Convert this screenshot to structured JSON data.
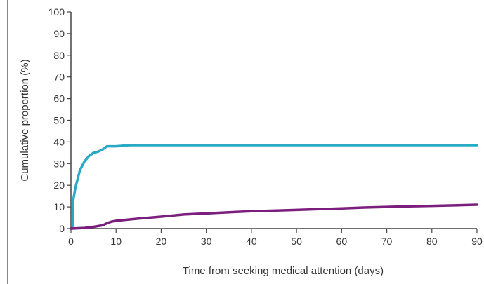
{
  "chart_data": {
    "type": "line",
    "title": "",
    "xlabel": "Time from seeking medical attention (days)",
    "ylabel": "Cumulative proportion (%)",
    "xlim": [
      0,
      90
    ],
    "ylim": [
      0,
      100
    ],
    "x_ticks": [
      0,
      10,
      20,
      30,
      40,
      50,
      60,
      70,
      80,
      90
    ],
    "y_ticks": [
      0,
      10,
      20,
      30,
      40,
      50,
      60,
      70,
      80,
      90,
      100
    ],
    "grid": false,
    "series": [
      {
        "color": "#2aa9c4",
        "x": [
          0.5,
          0.5,
          1,
          1.5,
          2,
          3,
          4,
          5,
          6,
          7,
          8,
          10,
          13,
          20,
          40,
          60,
          80,
          90
        ],
        "y": [
          0,
          13,
          19,
          23,
          27,
          31,
          33.5,
          35,
          35.5,
          36.5,
          38,
          38,
          38.5,
          38.5,
          38.5,
          38.5,
          38.5,
          38.5
        ]
      },
      {
        "color": "#7b1e7e",
        "x": [
          0,
          3,
          5,
          7,
          8,
          9,
          10,
          12,
          15,
          20,
          25,
          30,
          35,
          40,
          45,
          50,
          55,
          60,
          65,
          70,
          75,
          80,
          85,
          90
        ],
        "y": [
          0,
          0.3,
          0.8,
          1.5,
          2.5,
          3.2,
          3.6,
          4,
          4.6,
          5.5,
          6.5,
          7,
          7.5,
          8,
          8.3,
          8.6,
          9,
          9.3,
          9.7,
          10,
          10.3,
          10.5,
          10.7,
          11
        ]
      }
    ]
  }
}
